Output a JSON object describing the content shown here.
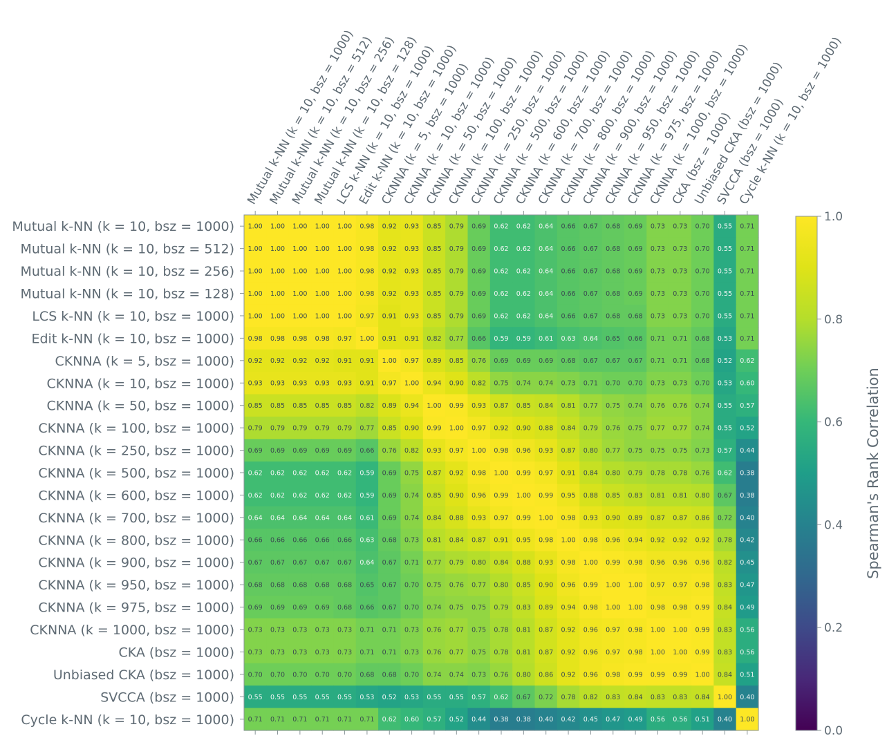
{
  "chart_data": {
    "type": "heatmap",
    "labels": [
      "Mutual k-NN (k = 10, bsz = 1000)",
      "Mutual k-NN (k = 10, bsz = 512)",
      "Mutual k-NN (k = 10, bsz = 256)",
      "Mutual k-NN (k = 10, bsz = 128)",
      "LCS k-NN (k = 10, bsz = 1000)",
      "Edit k-NN (k = 10, bsz = 1000)",
      "CKNNA (k = 5, bsz = 1000)",
      "CKNNA (k = 10, bsz = 1000)",
      "CKNNA (k = 50, bsz = 1000)",
      "CKNNA (k = 100, bsz = 1000)",
      "CKNNA (k = 250, bsz = 1000)",
      "CKNNA (k = 500, bsz = 1000)",
      "CKNNA (k = 600, bsz = 1000)",
      "CKNNA (k = 700, bsz = 1000)",
      "CKNNA (k = 800, bsz = 1000)",
      "CKNNA (k = 900, bsz = 1000)",
      "CKNNA (k = 950, bsz = 1000)",
      "CKNNA (k = 975, bsz = 1000)",
      "CKNNA (k = 1000, bsz = 1000)",
      "CKA (bsz = 1000)",
      "Unbiased CKA (bsz = 1000)",
      "SVCCA (bsz = 1000)",
      "Cycle k-NN (k = 10, bsz = 1000)"
    ],
    "values": [
      [
        1.0,
        1.0,
        1.0,
        1.0,
        1.0,
        0.98,
        0.92,
        0.93,
        0.85,
        0.79,
        0.69,
        0.62,
        0.62,
        0.64,
        0.66,
        0.67,
        0.68,
        0.69,
        0.73,
        0.73,
        0.7,
        0.55,
        0.71
      ],
      [
        1.0,
        1.0,
        1.0,
        1.0,
        1.0,
        0.98,
        0.92,
        0.93,
        0.85,
        0.79,
        0.69,
        0.62,
        0.62,
        0.64,
        0.66,
        0.67,
        0.68,
        0.69,
        0.73,
        0.73,
        0.7,
        0.55,
        0.71
      ],
      [
        1.0,
        1.0,
        1.0,
        1.0,
        1.0,
        0.98,
        0.92,
        0.93,
        0.85,
        0.79,
        0.69,
        0.62,
        0.62,
        0.64,
        0.66,
        0.67,
        0.68,
        0.69,
        0.73,
        0.73,
        0.7,
        0.55,
        0.71
      ],
      [
        1.0,
        1.0,
        1.0,
        1.0,
        1.0,
        0.98,
        0.92,
        0.93,
        0.85,
        0.79,
        0.69,
        0.62,
        0.62,
        0.64,
        0.66,
        0.67,
        0.68,
        0.69,
        0.73,
        0.73,
        0.7,
        0.55,
        0.71
      ],
      [
        1.0,
        1.0,
        1.0,
        1.0,
        1.0,
        0.97,
        0.91,
        0.93,
        0.85,
        0.79,
        0.69,
        0.62,
        0.62,
        0.64,
        0.66,
        0.67,
        0.68,
        0.68,
        0.73,
        0.73,
        0.7,
        0.55,
        0.71
      ],
      [
        0.98,
        0.98,
        0.98,
        0.98,
        0.97,
        1.0,
        0.91,
        0.91,
        0.82,
        0.77,
        0.66,
        0.59,
        0.59,
        0.61,
        0.63,
        0.64,
        0.65,
        0.66,
        0.71,
        0.71,
        0.68,
        0.53,
        0.71
      ],
      [
        0.92,
        0.92,
        0.92,
        0.92,
        0.91,
        0.91,
        1.0,
        0.97,
        0.89,
        0.85,
        0.76,
        0.69,
        0.69,
        0.69,
        0.68,
        0.67,
        0.67,
        0.67,
        0.71,
        0.71,
        0.68,
        0.52,
        0.62
      ],
      [
        0.93,
        0.93,
        0.93,
        0.93,
        0.93,
        0.91,
        0.97,
        1.0,
        0.94,
        0.9,
        0.82,
        0.75,
        0.74,
        0.74,
        0.73,
        0.71,
        0.7,
        0.7,
        0.73,
        0.73,
        0.7,
        0.53,
        0.6
      ],
      [
        0.85,
        0.85,
        0.85,
        0.85,
        0.85,
        0.82,
        0.89,
        0.94,
        1.0,
        0.99,
        0.93,
        0.87,
        0.85,
        0.84,
        0.81,
        0.77,
        0.75,
        0.74,
        0.76,
        0.76,
        0.74,
        0.55,
        0.57
      ],
      [
        0.79,
        0.79,
        0.79,
        0.79,
        0.79,
        0.77,
        0.85,
        0.9,
        0.99,
        1.0,
        0.97,
        0.92,
        0.9,
        0.88,
        0.84,
        0.79,
        0.76,
        0.75,
        0.77,
        0.77,
        0.74,
        0.55,
        0.52
      ],
      [
        0.69,
        0.69,
        0.69,
        0.69,
        0.69,
        0.66,
        0.76,
        0.82,
        0.93,
        0.97,
        1.0,
        0.98,
        0.96,
        0.93,
        0.87,
        0.8,
        0.77,
        0.75,
        0.75,
        0.75,
        0.73,
        0.57,
        0.44
      ],
      [
        0.62,
        0.62,
        0.62,
        0.62,
        0.62,
        0.59,
        0.69,
        0.75,
        0.87,
        0.92,
        0.98,
        1.0,
        0.99,
        0.97,
        0.91,
        0.84,
        0.8,
        0.79,
        0.78,
        0.78,
        0.76,
        0.62,
        0.38
      ],
      [
        0.62,
        0.62,
        0.62,
        0.62,
        0.62,
        0.59,
        0.69,
        0.74,
        0.85,
        0.9,
        0.96,
        0.99,
        1.0,
        0.99,
        0.95,
        0.88,
        0.85,
        0.83,
        0.81,
        0.81,
        0.8,
        0.67,
        0.38
      ],
      [
        0.64,
        0.64,
        0.64,
        0.64,
        0.64,
        0.61,
        0.69,
        0.74,
        0.84,
        0.88,
        0.93,
        0.97,
        0.99,
        1.0,
        0.98,
        0.93,
        0.9,
        0.89,
        0.87,
        0.87,
        0.86,
        0.72,
        0.4
      ],
      [
        0.66,
        0.66,
        0.66,
        0.66,
        0.66,
        0.63,
        0.68,
        0.73,
        0.81,
        0.84,
        0.87,
        0.91,
        0.95,
        0.98,
        1.0,
        0.98,
        0.96,
        0.94,
        0.92,
        0.92,
        0.92,
        0.78,
        0.42
      ],
      [
        0.67,
        0.67,
        0.67,
        0.67,
        0.67,
        0.64,
        0.67,
        0.71,
        0.77,
        0.79,
        0.8,
        0.84,
        0.88,
        0.93,
        0.98,
        1.0,
        0.99,
        0.98,
        0.96,
        0.96,
        0.96,
        0.82,
        0.45
      ],
      [
        0.68,
        0.68,
        0.68,
        0.68,
        0.68,
        0.65,
        0.67,
        0.7,
        0.75,
        0.76,
        0.77,
        0.8,
        0.85,
        0.9,
        0.96,
        0.99,
        1.0,
        1.0,
        0.97,
        0.97,
        0.98,
        0.83,
        0.47
      ],
      [
        0.69,
        0.69,
        0.69,
        0.69,
        0.68,
        0.66,
        0.67,
        0.7,
        0.74,
        0.75,
        0.75,
        0.79,
        0.83,
        0.89,
        0.94,
        0.98,
        1.0,
        1.0,
        0.98,
        0.98,
        0.99,
        0.84,
        0.49
      ],
      [
        0.73,
        0.73,
        0.73,
        0.73,
        0.73,
        0.71,
        0.71,
        0.73,
        0.76,
        0.77,
        0.75,
        0.78,
        0.81,
        0.87,
        0.92,
        0.96,
        0.97,
        0.98,
        1.0,
        1.0,
        0.99,
        0.83,
        0.56
      ],
      [
        0.73,
        0.73,
        0.73,
        0.73,
        0.73,
        0.71,
        0.71,
        0.73,
        0.76,
        0.77,
        0.75,
        0.78,
        0.81,
        0.87,
        0.92,
        0.96,
        0.97,
        0.98,
        1.0,
        1.0,
        0.99,
        0.83,
        0.56
      ],
      [
        0.7,
        0.7,
        0.7,
        0.7,
        0.7,
        0.68,
        0.68,
        0.7,
        0.74,
        0.74,
        0.73,
        0.76,
        0.8,
        0.86,
        0.92,
        0.96,
        0.98,
        0.99,
        0.99,
        0.99,
        1.0,
        0.84,
        0.51
      ],
      [
        0.55,
        0.55,
        0.55,
        0.55,
        0.55,
        0.53,
        0.52,
        0.53,
        0.55,
        0.55,
        0.57,
        0.62,
        0.67,
        0.72,
        0.78,
        0.82,
        0.83,
        0.84,
        0.83,
        0.83,
        0.84,
        1.0,
        0.4
      ],
      [
        0.71,
        0.71,
        0.71,
        0.71,
        0.71,
        0.71,
        0.62,
        0.6,
        0.57,
        0.52,
        0.44,
        0.38,
        0.38,
        0.4,
        0.42,
        0.45,
        0.47,
        0.49,
        0.56,
        0.56,
        0.51,
        0.4,
        1.0
      ]
    ],
    "colormap": "viridis",
    "vmin": 0.0,
    "vmax": 1.0,
    "colorbar": {
      "label": "Spearman's Rank Correlation",
      "ticks": [
        "0.0",
        "0.2",
        "0.4",
        "0.6",
        "0.8",
        "1.0"
      ],
      "placement": "right"
    }
  }
}
